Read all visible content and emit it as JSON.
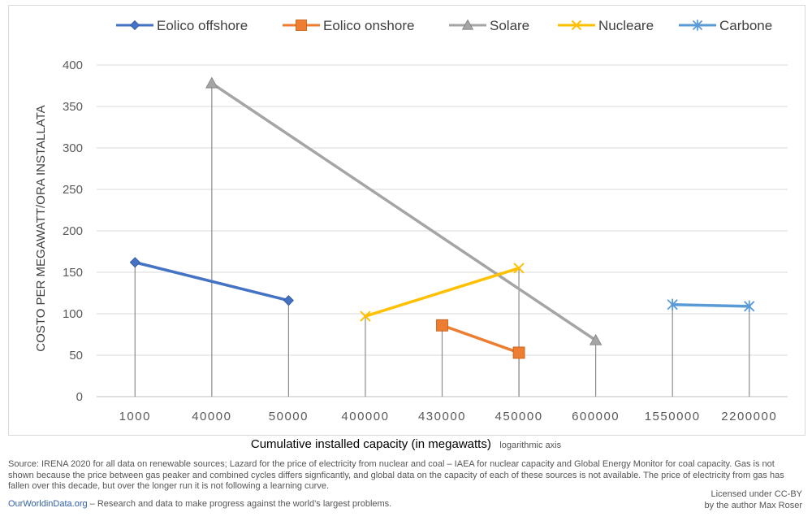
{
  "chart_data": {
    "type": "line",
    "x_scale": "logarithmic",
    "categories": [
      "1000",
      "40000",
      "50000",
      "400000",
      "430000",
      "450000",
      "600000",
      "1550000",
      "2200000"
    ],
    "xlabel": "Cumulative installed capacity (in megawatts)",
    "xlabel_note": "logarithmic axis",
    "ylabel": "COSTO PER MEGAWATT/ORA INSTALLATA",
    "ylim": [
      0,
      400
    ],
    "yticks": [
      0,
      50,
      100,
      150,
      200,
      250,
      300,
      350,
      400
    ],
    "grid": true,
    "legend_position": "top",
    "series": [
      {
        "name": "Eolico offshore",
        "color": "#4472c4",
        "marker": "diamond",
        "points": [
          {
            "x": 1000,
            "y": 162
          },
          {
            "x": 50000,
            "y": 116
          }
        ]
      },
      {
        "name": "Eolico onshore",
        "color": "#ed7d31",
        "marker": "square",
        "points": [
          {
            "x": 430000,
            "y": 86
          },
          {
            "x": 450000,
            "y": 53
          }
        ]
      },
      {
        "name": "Solare",
        "color": "#a5a5a5",
        "marker": "triangle",
        "points": [
          {
            "x": 40000,
            "y": 378
          },
          {
            "x": 600000,
            "y": 68
          }
        ]
      },
      {
        "name": "Nucleare",
        "color": "#ffc000",
        "marker": "x",
        "points": [
          {
            "x": 400000,
            "y": 97
          },
          {
            "x": 450000,
            "y": 155
          }
        ]
      },
      {
        "name": "Carbone",
        "color": "#5b9bd5",
        "marker": "star",
        "points": [
          {
            "x": 1550000,
            "y": 111
          },
          {
            "x": 2200000,
            "y": 109
          }
        ]
      }
    ]
  },
  "footer": {
    "source": "Source: IRENA 2020 for all data on renewable sources; Lazard for the price of electricity from nuclear and coal – IAEA for nuclear capacity and Global Energy Monitor for coal capacity. Gas is not shown because the price between gas peaker and combined cycles differs signficantly, and global data on the capacity of each of these sources is not available. The price of electricity from gas has fallen over this decade, but over the longer run it is not following a learning curve.",
    "owid_link": "OurWorldinData.org",
    "owid_tagline": " – Research and data to make progress against the world’s largest problems.",
    "license_line1": "Licensed under CC-BY",
    "license_line2": "by the author Max Roser"
  }
}
